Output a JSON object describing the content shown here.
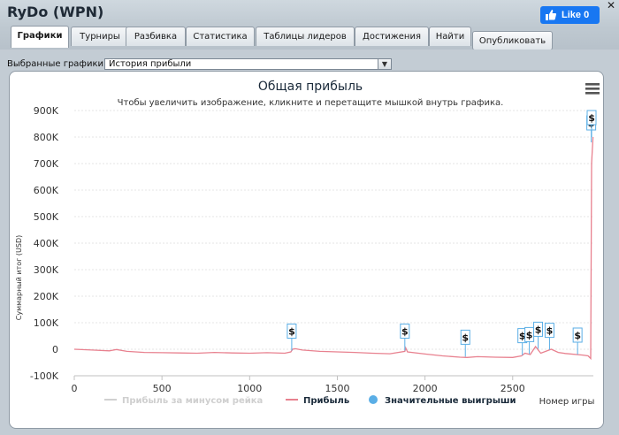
{
  "window": {
    "title": "RyDo (WPN)",
    "close": "✕"
  },
  "facebook": {
    "like_label": "Like 0"
  },
  "tabs": [
    {
      "label": "Графики",
      "active": true
    },
    {
      "label": "Турниры"
    },
    {
      "label": "Разбивка"
    },
    {
      "label": "Статистика"
    },
    {
      "label": "Таблицы лидеров"
    },
    {
      "label": "Достижения"
    },
    {
      "label": "Найти"
    }
  ],
  "publish_label": "Опубликовать",
  "graph_select": {
    "label": "Выбранные графики:",
    "value": "История прибыли"
  },
  "chart_data": {
    "type": "line",
    "title": "Общая прибыль",
    "subtitle": "Чтобы увеличить изображение, кликните и перетащите мышкой внутрь графика.",
    "xlabel": "Номер игры",
    "ylabel": "Суммарный итог (USD)",
    "xlim": [
      0,
      2960
    ],
    "ylim": [
      -100000,
      900000
    ],
    "x_ticks": [
      "0",
      "500",
      "1000",
      "1500",
      "2000",
      "2500"
    ],
    "y_ticks": [
      "-100K",
      "0",
      "100K",
      "200K",
      "300K",
      "400K",
      "500K",
      "600K",
      "700K",
      "800K",
      "900K"
    ],
    "grid": true,
    "legend_position": "bottom",
    "legend": [
      {
        "name": "Прибыль за минусом рейка",
        "color": "#d0d0d0"
      },
      {
        "name": "Прибыль",
        "color": "#e8818f"
      },
      {
        "name": "Значительные выигрыши",
        "color": "#5aaee6"
      }
    ],
    "series": [
      {
        "name": "Прибыль",
        "color": "#e8818f",
        "x": [
          0,
          100,
          200,
          240,
          300,
          400,
          500,
          600,
          700,
          800,
          900,
          1000,
          1100,
          1200,
          1235,
          1245,
          1260,
          1300,
          1400,
          1500,
          1600,
          1700,
          1800,
          1885,
          1890,
          1900,
          2000,
          2100,
          2200,
          2240,
          2300,
          2400,
          2500,
          2550,
          2570,
          2600,
          2630,
          2660,
          2700,
          2720,
          2760,
          2800,
          2900,
          2930,
          2945,
          2950,
          2958
        ],
        "y": [
          0,
          -3000,
          -6000,
          -1000,
          -8000,
          -12000,
          -13000,
          -14000,
          -15000,
          -12000,
          -14000,
          -15000,
          -13000,
          -15000,
          -10000,
          0,
          2000,
          -3000,
          -8000,
          -10000,
          -12000,
          -15000,
          -17000,
          -8000,
          5000,
          -10000,
          -18000,
          -25000,
          -30000,
          -31000,
          -28000,
          -30000,
          -31000,
          -25000,
          -15000,
          -20000,
          10000,
          -15000,
          -5000,
          0,
          -12000,
          -16000,
          -22000,
          -25000,
          -35000,
          700000,
          800000
        ]
      }
    ],
    "big_wins": [
      {
        "x": 1240,
        "y": -5000,
        "label": "$"
      },
      {
        "x": 1885,
        "y": -5000,
        "label": "$"
      },
      {
        "x": 2230,
        "y": -28000,
        "label": "$"
      },
      {
        "x": 2555,
        "y": -22000,
        "label": "$"
      },
      {
        "x": 2595,
        "y": -18000,
        "label": "$"
      },
      {
        "x": 2645,
        "y": 2000,
        "label": "$"
      },
      {
        "x": 2710,
        "y": -2000,
        "label": "$"
      },
      {
        "x": 2870,
        "y": -20000,
        "label": "$"
      },
      {
        "x": 2948,
        "y": 780000,
        "label": "$"
      },
      {
        "x": 2950,
        "y": 800000,
        "label": "$"
      }
    ]
  }
}
